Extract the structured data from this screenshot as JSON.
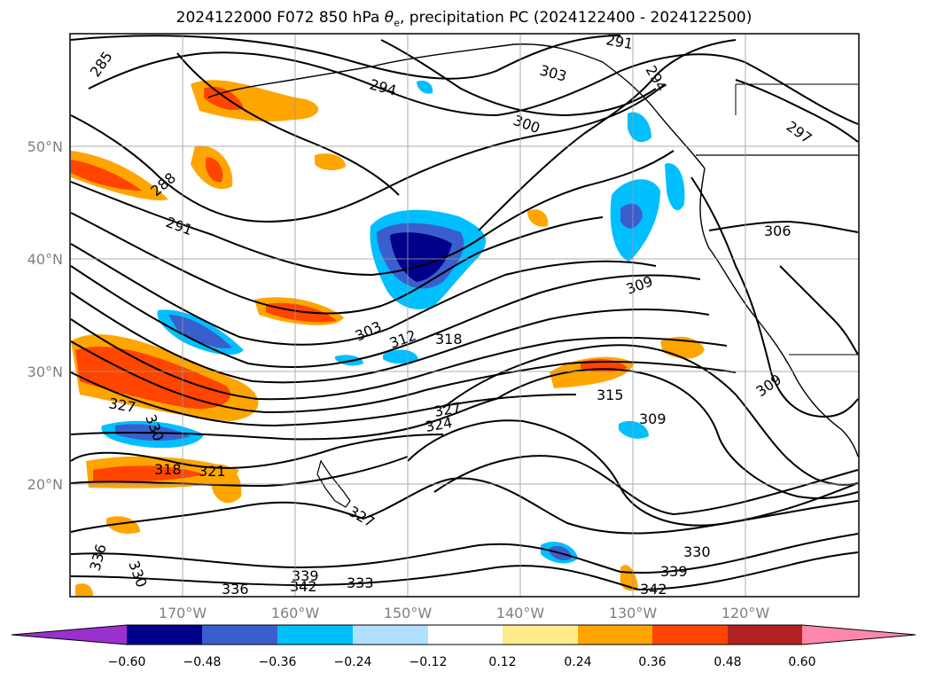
{
  "title": {
    "prefix": "2024122000 F072 850 hPa ",
    "symbol": "θ",
    "subscript": "e",
    "suffix": ", precipitation PC (2024122400 - 2024122500)"
  },
  "map": {
    "lat_ticks": [
      "50°N",
      "40°N",
      "30°N",
      "20°N"
    ],
    "lon_ticks": [
      "170°W",
      "160°W",
      "150°W",
      "140°W",
      "130°W",
      "120°W"
    ],
    "contour_labels": [
      "285",
      "288",
      "291",
      "291",
      "294",
      "294",
      "297",
      "300",
      "303",
      "303",
      "306",
      "309",
      "309",
      "309",
      "312",
      "315",
      "318",
      "318",
      "321",
      "324",
      "327",
      "327",
      "327",
      "330",
      "330",
      "330",
      "333",
      "336",
      "336",
      "339",
      "339",
      "342",
      "342"
    ]
  },
  "colorbar": {
    "ticks": [
      "−0.60",
      "−0.48",
      "−0.36",
      "−0.24",
      "−0.12",
      "0.12",
      "0.24",
      "0.36",
      "0.48",
      "0.60"
    ],
    "colors": [
      "#9b30d0",
      "#00008b",
      "#3a5fcd",
      "#00bfff",
      "#b0e0ff",
      "#ffffff",
      "#ffec8b",
      "#ffa500",
      "#ff4500",
      "#b22222",
      "#ff88aa"
    ]
  }
}
